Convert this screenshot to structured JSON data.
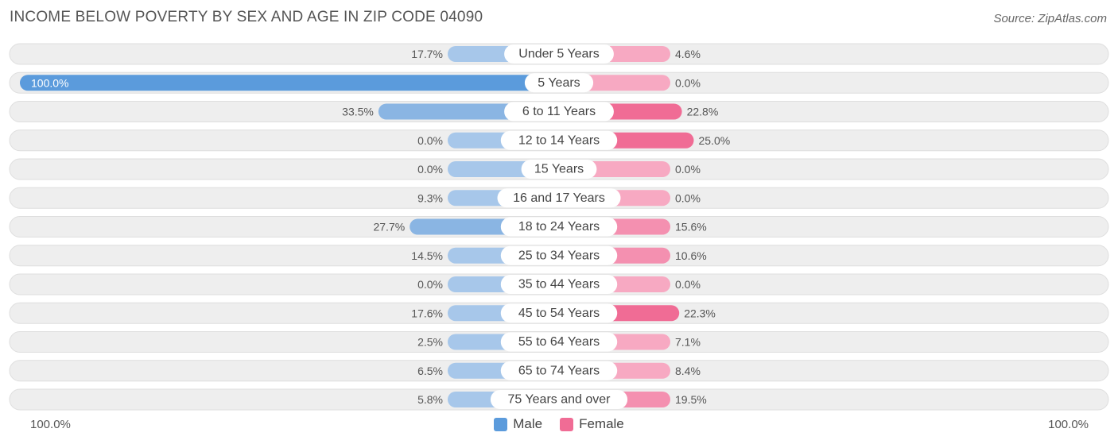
{
  "title": "INCOME BELOW POVERTY BY SEX AND AGE IN ZIP CODE 04090",
  "source": "Source: ZipAtlas.com",
  "axis": {
    "left_label": "100.0%",
    "right_label": "100.0%"
  },
  "legend": {
    "male_label": "Male",
    "female_label": "Female"
  },
  "colors": {
    "male_strong": "#5b9bdc",
    "male_light": "#a7c7ea",
    "female_strong": "#f06c95",
    "female_light": "#f7a9c2",
    "row_bg": "#eeeeee"
  },
  "chart_data": {
    "type": "bar",
    "orientation": "horizontal-diverging",
    "categories": [
      "Under 5 Years",
      "5 Years",
      "6 to 11 Years",
      "12 to 14 Years",
      "15 Years",
      "16 and 17 Years",
      "18 to 24 Years",
      "25 to 34 Years",
      "35 to 44 Years",
      "45 to 54 Years",
      "55 to 64 Years",
      "65 to 74 Years",
      "75 Years and over"
    ],
    "series": [
      {
        "name": "Male",
        "values": [
          17.7,
          100.0,
          33.5,
          0.0,
          0.0,
          9.3,
          27.7,
          14.5,
          0.0,
          17.6,
          2.5,
          6.5,
          5.8
        ],
        "labels": [
          "17.7%",
          "100.0%",
          "33.5%",
          "0.0%",
          "0.0%",
          "9.3%",
          "27.7%",
          "14.5%",
          "0.0%",
          "17.6%",
          "2.5%",
          "6.5%",
          "5.8%"
        ]
      },
      {
        "name": "Female",
        "values": [
          4.6,
          0.0,
          22.8,
          25.0,
          0.0,
          0.0,
          15.6,
          10.6,
          0.0,
          22.3,
          7.1,
          8.4,
          19.5
        ],
        "labels": [
          "4.6%",
          "0.0%",
          "22.8%",
          "25.0%",
          "0.0%",
          "0.0%",
          "15.6%",
          "10.6%",
          "0.0%",
          "22.3%",
          "7.1%",
          "8.4%",
          "19.5%"
        ]
      }
    ],
    "xlim": [
      -100,
      100
    ],
    "legend_position": "bottom-center"
  }
}
